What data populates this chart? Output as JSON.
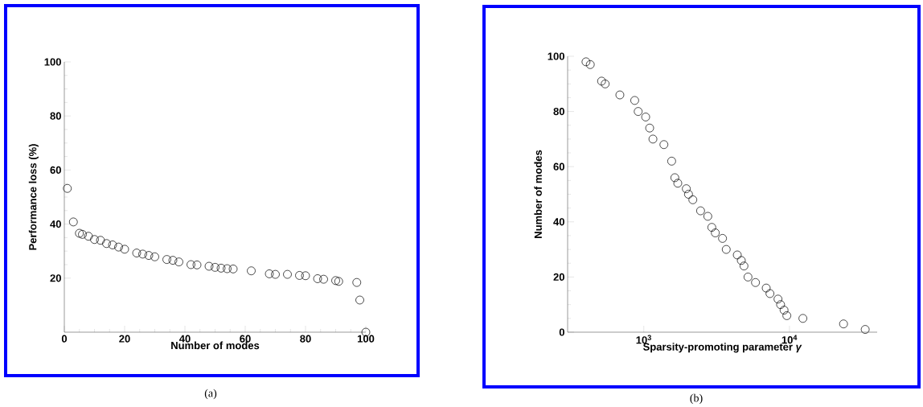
{
  "chart_data": [
    {
      "type": "scatter",
      "xlabel": "Number of modes",
      "ylabel": "Performance loss (%)",
      "color": "#000000",
      "marker": "circle",
      "x": [
        1,
        3,
        5,
        6,
        8,
        10,
        12,
        14,
        16,
        18,
        20,
        24,
        26,
        28,
        30,
        34,
        36,
        38,
        42,
        44,
        48,
        50,
        52,
        54,
        56,
        62,
        68,
        70,
        74,
        78,
        80,
        84,
        86,
        90,
        91,
        97,
        98,
        100
      ],
      "values": [
        53.2,
        40.8,
        36.6,
        36.2,
        35.5,
        34.3,
        34,
        32.8,
        32.3,
        31.5,
        30.7,
        29.3,
        28.9,
        28.4,
        27.9,
        26.9,
        26.6,
        26,
        25,
        24.9,
        24.4,
        24,
        23.7,
        23.5,
        23.4,
        22.7,
        21.6,
        21.4,
        21.4,
        21,
        20.9,
        19.8,
        19.6,
        19.1,
        18.8,
        18.4,
        11.9,
        0
      ],
      "xlim": [
        0,
        100
      ],
      "xticks": [
        0,
        20,
        40,
        60,
        80,
        100
      ],
      "ylim": [
        0,
        100
      ],
      "yticks": [
        20,
        40,
        60,
        80,
        100
      ],
      "annotations": [
        "(a)"
      ]
    },
    {
      "type": "scatter",
      "xlabel": "Sparsity-promoting parameter *γ*",
      "ylabel": "Number of modes",
      "color": "#000000",
      "marker": "circle",
      "log": "x",
      "x": [
        401,
        429,
        513,
        543,
        685,
        866,
        915,
        1030,
        1097,
        1155,
        1374,
        1553,
        1633,
        1711,
        1958,
        2027,
        2170,
        2453,
        2750,
        2930,
        3096,
        3470,
        3680,
        4383,
        4670,
        4870,
        5190,
        5844,
        6924,
        7345,
        8340,
        8690,
        9180,
        9590,
        12360,
        23500,
        33100
      ],
      "values": [
        98,
        97,
        91,
        90,
        86,
        84,
        80,
        78,
        74,
        70,
        68,
        62,
        56,
        54,
        52,
        50,
        48,
        44,
        42,
        38,
        36,
        34,
        30,
        28,
        26,
        24,
        20,
        18,
        16,
        14,
        12,
        10,
        8,
        6,
        5,
        3,
        1
      ],
      "xlim": [
        300,
        40000
      ],
      "xticks": [
        {
          "value": 1000,
          "label": "10$^{3}$"
        },
        {
          "value": 10000,
          "label": "10$^{4}$"
        }
      ],
      "ylim": [
        0,
        100
      ],
      "yticks": [
        0,
        20,
        40,
        60,
        80,
        100
      ],
      "annotations": [
        "(b)"
      ]
    }
  ]
}
